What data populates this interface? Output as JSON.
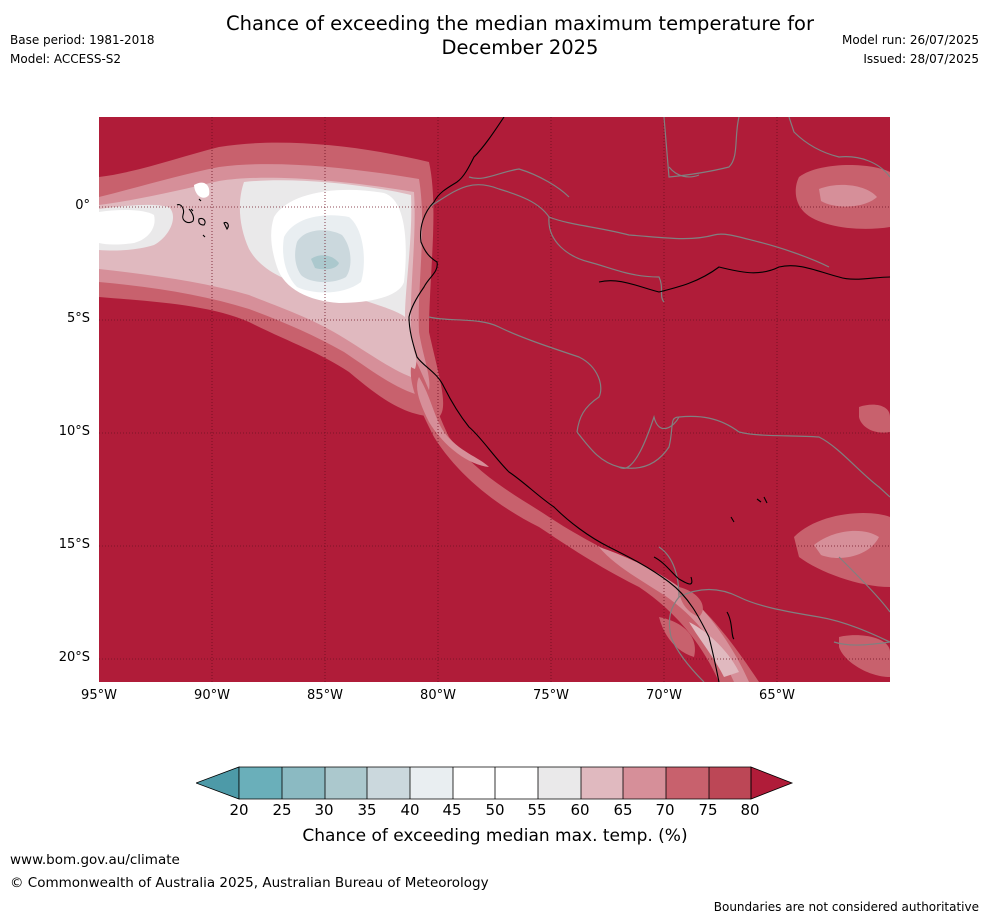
{
  "header": {
    "title_line1": "Chance of exceeding the median maximum temperature for",
    "title_line2": "December 2025",
    "base_period": "Base period: 1981-2018",
    "model": "Model: ACCESS-S2",
    "model_run": "Model run: 26/07/2025",
    "issued": "Issued: 28/07/2025"
  },
  "map": {
    "region": "Western South America and eastern Pacific",
    "lat_ticks": [
      "0°",
      "5°S",
      "10°S",
      "15°S",
      "20°S"
    ],
    "lon_ticks": [
      "95°W",
      "90°W",
      "85°W",
      "80°W",
      "75°W",
      "70°W",
      "65°W"
    ],
    "lon_range": [
      -95,
      -60
    ],
    "lat_range": [
      -21,
      4
    ],
    "colors": {
      "c20_25": "#6aafba",
      "c25_30": "#8bbac2",
      "c30_35": "#abc8cd",
      "c35_40": "#cbd8dd",
      "c40_45": "#e9eef1",
      "c45_50": "#ffffff",
      "c50_55": "#ffffff",
      "c55_60": "#eae9ea",
      "c60_65": "#e0b9bf",
      "c65_70": "#d68f99",
      "c70_75": "#c8616d",
      "c75_80": "#bc4756",
      "c_over80": "#b01c39",
      "coast": "#000000",
      "border": "#808080"
    }
  },
  "colorbar": {
    "labels": [
      "20",
      "25",
      "30",
      "35",
      "40",
      "45",
      "50",
      "55",
      "60",
      "65",
      "70",
      "75",
      "80"
    ],
    "title": "Chance of exceeding median max. temp. (%)"
  },
  "footer": {
    "url": "www.bom.gov.au/climate",
    "copyright": "© Commonwealth of Australia 2025, Australian Bureau of Meteorology",
    "disclaimer": "Boundaries are not considered authoritative"
  }
}
